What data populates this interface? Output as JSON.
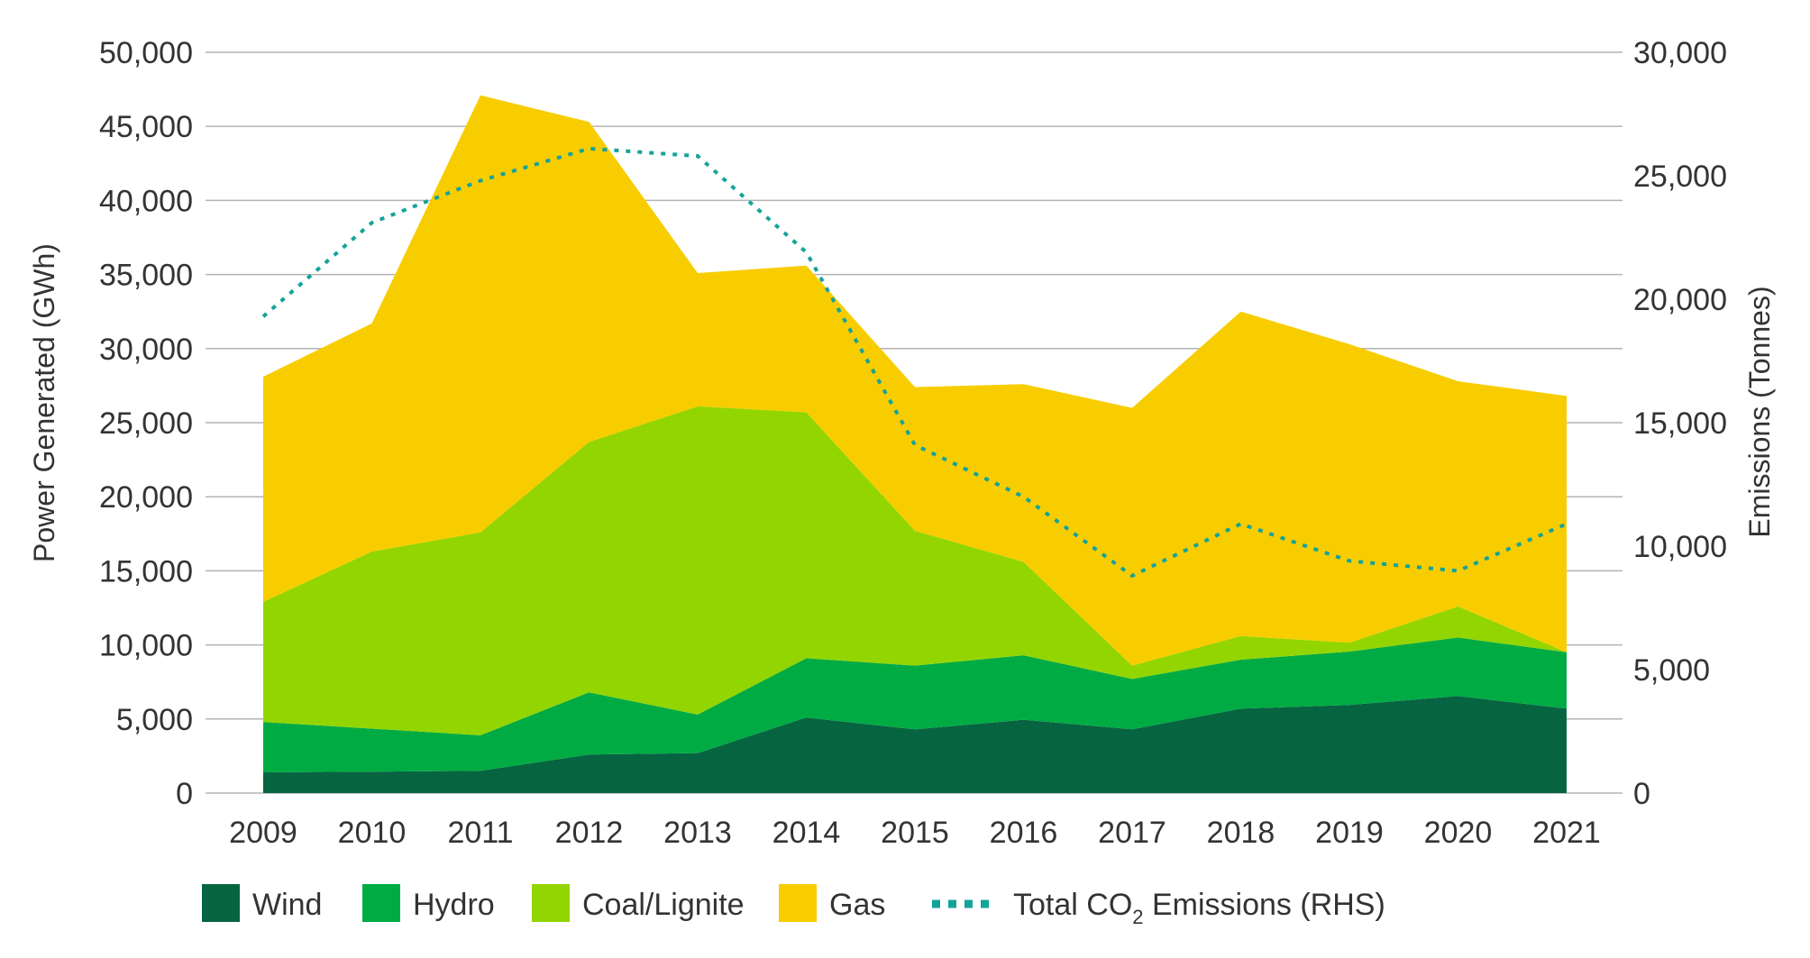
{
  "chart_data": {
    "type": "area",
    "stacked": true,
    "categories": [
      "2009",
      "2010",
      "2011",
      "2012",
      "2013",
      "2014",
      "2015",
      "2016",
      "2017",
      "2018",
      "2019",
      "2020",
      "2021"
    ],
    "series": [
      {
        "name": "Wind",
        "color": "#066540",
        "values": [
          1400,
          1450,
          1500,
          2600,
          2700,
          5100,
          4300,
          4950,
          4300,
          5700,
          5950,
          6550,
          5700
        ]
      },
      {
        "name": "Hydro",
        "color": "#00AB44",
        "values": [
          3400,
          2900,
          2400,
          4200,
          2600,
          4000,
          4300,
          4350,
          3400,
          3300,
          3600,
          3950,
          3800
        ]
      },
      {
        "name": "Coal/Lignite",
        "color": "#93D500",
        "values": [
          8100,
          11950,
          13700,
          16900,
          20800,
          16600,
          9100,
          6300,
          900,
          1600,
          600,
          2100,
          0
        ]
      },
      {
        "name": "Gas",
        "color": "#F8CD00",
        "values": [
          15200,
          15400,
          29500,
          21600,
          9000,
          9900,
          9700,
          12000,
          17400,
          21900,
          20150,
          15200,
          17300
        ]
      }
    ],
    "line_series": {
      "name_prefix": "Total CO",
      "name_sub": "2",
      "name_suffix": " Emissions (RHS)",
      "color": "#14A39A",
      "axis": "right",
      "values": [
        19300,
        23100,
        24800,
        26100,
        25800,
        21900,
        14100,
        12000,
        8800,
        10900,
        9400,
        9000,
        10900
      ]
    },
    "y_left": {
      "label": "Power Generated (GWh)",
      "min": 0,
      "max": 50000,
      "step": 5000,
      "ticks": [
        "0",
        "5,000",
        "10,000",
        "15,000",
        "20,000",
        "25,000",
        "30,000",
        "35,000",
        "40,000",
        "45,000",
        "50,000"
      ]
    },
    "y_right": {
      "label": "Emissions (Tonnes)",
      "min": 0,
      "max": 30000,
      "step": 5000,
      "ticks": [
        "0",
        "5,000",
        "10,000",
        "15,000",
        "20,000",
        "25,000",
        "30,000"
      ]
    },
    "grid": true,
    "legend_position": "bottom-left"
  }
}
